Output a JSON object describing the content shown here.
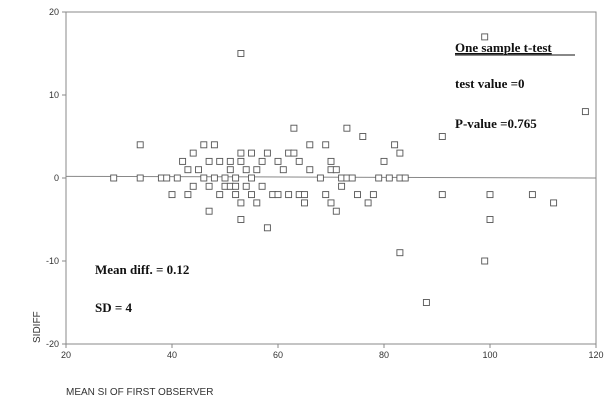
{
  "chart_data": {
    "type": "scatter",
    "title": "",
    "xlabel": "MEAN SI OF FIRST OBSERVER",
    "ylabel": "SIDIFF",
    "xlim": [
      20,
      120
    ],
    "ylim": [
      -20,
      20
    ],
    "xticks": [
      20,
      40,
      60,
      80,
      100,
      120
    ],
    "yticks": [
      -20,
      -10,
      0,
      10,
      20
    ],
    "grid": false,
    "annotations": {
      "test_heading": "One sample t-test",
      "test_value": "test value =0",
      "p_value": "P-value =0.765",
      "mean_diff": "Mean diff. = 0.12",
      "sd": "SD = 4"
    },
    "regression_line": {
      "x": [
        20,
        120
      ],
      "y": [
        0.2,
        0.0
      ]
    },
    "points": [
      [
        29,
        0
      ],
      [
        34,
        4
      ],
      [
        34,
        0
      ],
      [
        38,
        0
      ],
      [
        39,
        0
      ],
      [
        40,
        -2
      ],
      [
        41,
        0
      ],
      [
        42,
        2
      ],
      [
        43,
        1
      ],
      [
        43,
        -2
      ],
      [
        44,
        3
      ],
      [
        44,
        -1
      ],
      [
        45,
        1
      ],
      [
        46,
        4
      ],
      [
        46,
        0
      ],
      [
        47,
        2
      ],
      [
        47,
        -1
      ],
      [
        47,
        -4
      ],
      [
        48,
        4
      ],
      [
        48,
        0
      ],
      [
        49,
        2
      ],
      [
        49,
        -2
      ],
      [
        50,
        0
      ],
      [
        50,
        -1
      ],
      [
        51,
        2
      ],
      [
        51,
        -1
      ],
      [
        51,
        1
      ],
      [
        52,
        0
      ],
      [
        52,
        -1
      ],
      [
        52,
        -2
      ],
      [
        53,
        2
      ],
      [
        53,
        3
      ],
      [
        53,
        -3
      ],
      [
        53,
        -5
      ],
      [
        53,
        15
      ],
      [
        54,
        1
      ],
      [
        54,
        -1
      ],
      [
        55,
        0
      ],
      [
        55,
        -2
      ],
      [
        55,
        3
      ],
      [
        56,
        -3
      ],
      [
        56,
        1
      ],
      [
        57,
        -1
      ],
      [
        57,
        2
      ],
      [
        58,
        3
      ],
      [
        58,
        -6
      ],
      [
        59,
        -2
      ],
      [
        60,
        2
      ],
      [
        60,
        -2
      ],
      [
        61,
        1
      ],
      [
        62,
        3
      ],
      [
        62,
        -2
      ],
      [
        63,
        6
      ],
      [
        63,
        3
      ],
      [
        64,
        2
      ],
      [
        64,
        -2
      ],
      [
        65,
        -3
      ],
      [
        65,
        -2
      ],
      [
        66,
        4
      ],
      [
        66,
        1
      ],
      [
        68,
        0
      ],
      [
        69,
        4
      ],
      [
        69,
        -2
      ],
      [
        70,
        1
      ],
      [
        70,
        -3
      ],
      [
        70,
        2
      ],
      [
        71,
        -4
      ],
      [
        71,
        1
      ],
      [
        72,
        0
      ],
      [
        72,
        -1
      ],
      [
        73,
        6
      ],
      [
        73,
        0
      ],
      [
        74,
        0
      ],
      [
        75,
        -2
      ],
      [
        76,
        5
      ],
      [
        77,
        -3
      ],
      [
        78,
        -2
      ],
      [
        79,
        0
      ],
      [
        80,
        2
      ],
      [
        81,
        0
      ],
      [
        82,
        4
      ],
      [
        83,
        3
      ],
      [
        83,
        0
      ],
      [
        83,
        -9
      ],
      [
        84,
        0
      ],
      [
        88,
        -15
      ],
      [
        91,
        5
      ],
      [
        91,
        -2
      ],
      [
        99,
        17
      ],
      [
        99,
        -10
      ],
      [
        100,
        -5
      ],
      [
        100,
        -2
      ],
      [
        108,
        -2
      ],
      [
        112,
        -3
      ],
      [
        118,
        8
      ]
    ]
  }
}
